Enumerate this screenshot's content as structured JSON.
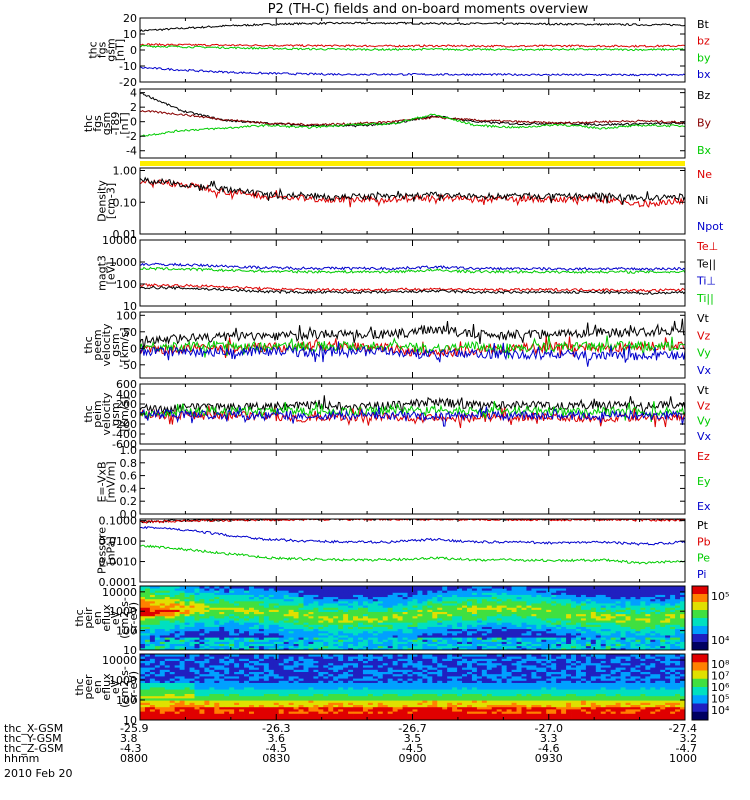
{
  "chart_data": {
    "type": "line",
    "title": "P2 (TH-C) fields and on-board moments overview",
    "x_range": [
      "0800",
      "1000"
    ],
    "panels": [
      {
        "id": "fgs",
        "ylabel": [
          "thc",
          "fgs",
          "gsm",
          "[nT]"
        ],
        "ylim": [
          -20,
          20
        ],
        "yticks": [
          {
            "v": 20,
            "label": "20"
          },
          {
            "v": 10,
            "label": "10"
          },
          {
            "v": 0,
            "label": "0"
          },
          {
            "v": -10,
            "label": "-10"
          },
          {
            "v": -20,
            "label": "-20"
          }
        ],
        "series": [
          {
            "name": "Bt",
            "color": "#000000",
            "values": [
              12,
              13.5,
              15,
              16,
              16.6,
              16.8,
              16.8,
              16.6,
              16.5,
              16.4,
              16.2,
              16.0,
              15.8,
              15.7
            ]
          },
          {
            "name": "bz",
            "color": "#dd0000",
            "values": [
              3.5,
              3.2,
              3.0,
              2.9,
              2.7,
              2.6,
              2.5,
              2.6,
              2.5,
              2.4,
              2.6,
              2.5,
              2.4,
              2.6
            ]
          },
          {
            "name": "by",
            "color": "#00cc00",
            "values": [
              2.5,
              2.0,
              1.5,
              1.0,
              0.6,
              0.4,
              0.3,
              0.5,
              0.3,
              0.2,
              0.4,
              0.3,
              0.2,
              0.4
            ]
          },
          {
            "name": "bx",
            "color": "#0000cc",
            "values": [
              -11,
              -12.5,
              -13.8,
              -14.6,
              -15.0,
              -15.2,
              -15.2,
              -15.3,
              -15.3,
              -15.4,
              -15.5,
              -15.5,
              -15.6,
              -15.6
            ]
          }
        ]
      },
      {
        "id": "fgs_dsl",
        "ylabel": [
          "thc",
          "fgs",
          "gsm",
          "-T89",
          "[nT]"
        ],
        "ylim": [
          -5,
          4.5
        ],
        "yticks": [
          {
            "v": 4,
            "label": "4"
          },
          {
            "v": 2,
            "label": "2"
          },
          {
            "v": 0,
            "label": "0"
          },
          {
            "v": -2,
            "label": "-2"
          },
          {
            "v": -4,
            "label": "-4"
          }
        ],
        "series": [
          {
            "name": "Bz",
            "color": "#000000",
            "values": [
              4,
              1.5,
              0.2,
              -0.2,
              -0.5,
              -0.6,
              -0.3,
              0.8,
              0.0,
              -0.3,
              -0.2,
              -0.4,
              -0.3,
              -0.2
            ]
          },
          {
            "name": "By",
            "color": "#880000",
            "values": [
              1.5,
              1.0,
              0.3,
              -0.2,
              -0.4,
              -0.3,
              0.0,
              0.6,
              0.2,
              0.0,
              -0.2,
              0.0,
              0.1,
              -0.1
            ]
          },
          {
            "name": "Bx",
            "color": "#00cc00",
            "values": [
              -2.0,
              -1.2,
              -0.9,
              -0.5,
              -0.8,
              -0.4,
              -0.3,
              1.0,
              -0.5,
              -0.8,
              -0.4,
              -0.9,
              -0.5,
              -0.6
            ]
          }
        ]
      },
      {
        "id": "density",
        "ylabel": [
          "Density",
          "[cm-3]"
        ],
        "log": true,
        "ylim": [
          0.01,
          1.2
        ],
        "yticks": [
          {
            "v": 1,
            "label": "1.00"
          },
          {
            "v": 0.1,
            "label": "0.10"
          },
          {
            "v": 0.01,
            "label": "0.01"
          }
        ],
        "series": [
          {
            "name": "Ne",
            "color": "#dd0000",
            "values": [
              0.48,
              0.36,
              0.22,
              0.15,
              0.13,
              0.12,
              0.12,
              0.14,
              0.12,
              0.13,
              0.12,
              0.13,
              0.08,
              0.12
            ]
          },
          {
            "name": "Ni",
            "color": "#000000",
            "values": [
              0.5,
              0.38,
              0.25,
              0.17,
              0.16,
              0.15,
              0.15,
              0.17,
              0.15,
              0.16,
              0.15,
              0.16,
              0.13,
              0.15
            ]
          },
          {
            "name": "Npot",
            "color": "#0000cc",
            "values": []
          }
        ]
      },
      {
        "id": "temperature",
        "ylabel": [
          "magt3",
          "[eV]"
        ],
        "log": true,
        "ylim": [
          10,
          10000
        ],
        "yticks": [
          {
            "v": 10000,
            "label": "10000"
          },
          {
            "v": 1000,
            "label": "1000"
          },
          {
            "v": 100,
            "label": "100"
          },
          {
            "v": 10,
            "label": "10"
          }
        ],
        "series": [
          {
            "name": "Te⊥",
            "color": "#dd0000",
            "values": [
              90,
              85,
              75,
              60,
              55,
              55,
              55,
              60,
              55,
              55,
              55,
              55,
              50,
              55
            ]
          },
          {
            "name": "Te||",
            "color": "#000000",
            "values": [
              70,
              65,
              55,
              45,
              42,
              42,
              42,
              48,
              42,
              42,
              42,
              42,
              38,
              42
            ]
          },
          {
            "name": "Ti⊥",
            "color": "#0000cc",
            "values": [
              800,
              750,
              650,
              550,
              520,
              520,
              500,
              600,
              500,
              500,
              480,
              500,
              480,
              500
            ]
          },
          {
            "name": "Ti||",
            "color": "#00cc00",
            "values": [
              500,
              480,
              420,
              380,
              360,
              360,
              360,
              420,
              360,
              360,
              350,
              360,
              350,
              360
            ]
          }
        ]
      },
      {
        "id": "velocity_e",
        "ylabel": [
          "thc",
          "peem",
          "velocity",
          "gsm",
          "[km/s]"
        ],
        "ylim": [
          -90,
          110
        ],
        "yticks": [
          {
            "v": 100,
            "label": "100"
          },
          {
            "v": 50,
            "label": "50"
          },
          {
            "v": 0,
            "label": "0"
          },
          {
            "v": -50,
            "label": "-50"
          }
        ],
        "series": [
          {
            "name": "Vt",
            "color": "#000000",
            "values": [
              25,
              30,
              35,
              38,
              40,
              45,
              40,
              60,
              40,
              42,
              45,
              48,
              50,
              55
            ]
          },
          {
            "name": "Vz",
            "color": "#dd0000",
            "values": [
              -5,
              -2,
              0,
              3,
              5,
              5,
              0,
              -20,
              -5,
              0,
              5,
              3,
              5,
              10
            ]
          },
          {
            "name": "Vy",
            "color": "#00cc00",
            "values": [
              5,
              5,
              8,
              5,
              5,
              8,
              5,
              0,
              5,
              0,
              5,
              5,
              8,
              5
            ]
          },
          {
            "name": "Vx",
            "color": "#0000cc",
            "values": [
              -10,
              -12,
              -10,
              -10,
              -12,
              -10,
              -10,
              -20,
              -15,
              -20,
              -18,
              -22,
              -25,
              -20
            ]
          }
        ]
      },
      {
        "id": "velocity_i",
        "ylabel": [
          "thc",
          "peim",
          "velocity",
          "gsm",
          "[km/s]"
        ],
        "ylim": [
          -600,
          600
        ],
        "yticks": [
          {
            "v": 600,
            "label": "600"
          },
          {
            "v": 400,
            "label": "400"
          },
          {
            "v": 200,
            "label": "200"
          },
          {
            "v": 0,
            "label": "0"
          },
          {
            "v": -200,
            "label": "-200"
          },
          {
            "v": -400,
            "label": "-400"
          },
          {
            "v": -600,
            "label": "-600"
          }
        ],
        "series": [
          {
            "name": "Vt",
            "color": "#000000",
            "values": [
              100,
              120,
              130,
              150,
              180,
              160,
              170,
              250,
              170,
              180,
              170,
              180,
              160,
              170
            ]
          },
          {
            "name": "Vz",
            "color": "#dd0000",
            "values": [
              0,
              -20,
              -30,
              -50,
              -80,
              -60,
              -50,
              -60,
              -80,
              -50,
              -60,
              -80,
              -60,
              -50
            ]
          },
          {
            "name": "Vy",
            "color": "#00cc00",
            "values": [
              20,
              40,
              60,
              50,
              40,
              50,
              60,
              80,
              50,
              60,
              50,
              60,
              50,
              50
            ]
          },
          {
            "name": "Vx",
            "color": "#0000cc",
            "values": [
              10,
              0,
              -20,
              -40,
              -20,
              -30,
              -20,
              -50,
              -20,
              -30,
              -20,
              -30,
              -20,
              -30
            ]
          }
        ]
      },
      {
        "id": "efield",
        "ylabel": [
          "E=-VxB",
          "[mV/m]"
        ],
        "ylim": [
          0,
          1
        ],
        "yticks": [
          {
            "v": 1,
            "label": "1.0"
          },
          {
            "v": 0.8,
            "label": "0.8"
          },
          {
            "v": 0.6,
            "label": "0.6"
          },
          {
            "v": 0.4,
            "label": "0.4"
          },
          {
            "v": 0.2,
            "label": "0.2"
          },
          {
            "v": 0,
            "label": "0.0"
          }
        ],
        "series": [
          {
            "name": "Ez",
            "color": "#dd0000",
            "values": []
          },
          {
            "name": "Ey",
            "color": "#00cc00",
            "values": []
          },
          {
            "name": "Ex",
            "color": "#0000cc",
            "values": []
          }
        ]
      },
      {
        "id": "pressure",
        "ylabel": [
          "Pressure",
          "[nPa]"
        ],
        "log": true,
        "ylim": [
          0.0001,
          0.12
        ],
        "yticks": [
          {
            "v": 0.1,
            "label": "0.1000"
          },
          {
            "v": 0.01,
            "label": "0.0100"
          },
          {
            "v": 0.001,
            "label": "0.0010"
          },
          {
            "v": 0.0001,
            "label": "0.0001"
          }
        ],
        "series": [
          {
            "name": "Pt",
            "color": "#000000",
            "values": [
              0.09,
              0.1,
              0.11,
              0.11,
              0.12,
              0.12,
              0.12,
              0.12,
              0.12,
              0.12,
              0.12,
              0.12,
              0.12,
              0.11
            ]
          },
          {
            "name": "Pb",
            "color": "#dd0000",
            "values": [
              0.085,
              0.095,
              0.105,
              0.11,
              0.115,
              0.118,
              0.118,
              0.115,
              0.115,
              0.114,
              0.112,
              0.11,
              0.108,
              0.107
            ]
          },
          {
            "name": "Pe",
            "color": "#00cc00",
            "values": [
              0.006,
              0.004,
              0.0025,
              0.0015,
              0.0013,
              0.0012,
              0.0012,
              0.0015,
              0.0012,
              0.0012,
              0.0011,
              0.0012,
              0.0008,
              0.0011
            ]
          },
          {
            "name": "Pi",
            "color": "#0000cc",
            "values": [
              0.05,
              0.035,
              0.02,
              0.012,
              0.01,
              0.009,
              0.009,
              0.012,
              0.009,
              0.009,
              0.008,
              0.009,
              0.007,
              0.009
            ]
          }
        ]
      },
      {
        "id": "ion_spec",
        "type": "heatmap",
        "ylabel": [
          "thc",
          "peir",
          "en",
          "eflux",
          "eV",
          "(cm2-s-",
          "sr-eV)"
        ],
        "log": true,
        "ylim": [
          10,
          20000
        ],
        "yticks": [
          {
            "v": 10000,
            "label": "10000"
          },
          {
            "v": 1000,
            "label": "1000"
          },
          {
            "v": 100,
            "label": "100"
          },
          {
            "v": 10,
            "label": "10"
          }
        ],
        "colorbar": {
          "ticks": [
            "10⁵",
            "10⁴"
          ]
        }
      },
      {
        "id": "elec_spec",
        "type": "heatmap",
        "ylabel": [
          "thc",
          "peer",
          "en",
          "eflux",
          "eV",
          "(cm2-s-",
          "sr-eV)"
        ],
        "log": true,
        "ylim": [
          10,
          20000
        ],
        "yticks": [
          {
            "v": 10000,
            "label": "10000"
          },
          {
            "v": 1000,
            "label": "1000"
          },
          {
            "v": 100,
            "label": "100"
          },
          {
            "v": 10,
            "label": "10"
          }
        ],
        "colorbar": {
          "ticks": [
            "10⁸",
            "10⁷",
            "10⁶",
            "10⁵",
            "10⁴"
          ]
        }
      }
    ],
    "footer": {
      "rows": [
        {
          "label": "thc_X-GSM",
          "values": [
            "-25.9",
            "-26.3",
            "-26.7",
            "-27.0",
            "-27.4"
          ]
        },
        {
          "label": "thc_Y-GSM",
          "values": [
            "3.8",
            "3.6",
            "3.5",
            "3.3",
            "3.2"
          ]
        },
        {
          "label": "thc_Z-GSM",
          "values": [
            "-4.3",
            "-4.5",
            "-4.5",
            "-4.6",
            "-4.7"
          ]
        },
        {
          "label": "hhmm",
          "values": [
            "0800",
            "0830",
            "0900",
            "0930",
            "1000"
          ]
        }
      ],
      "date": "2010 Feb 20"
    }
  }
}
